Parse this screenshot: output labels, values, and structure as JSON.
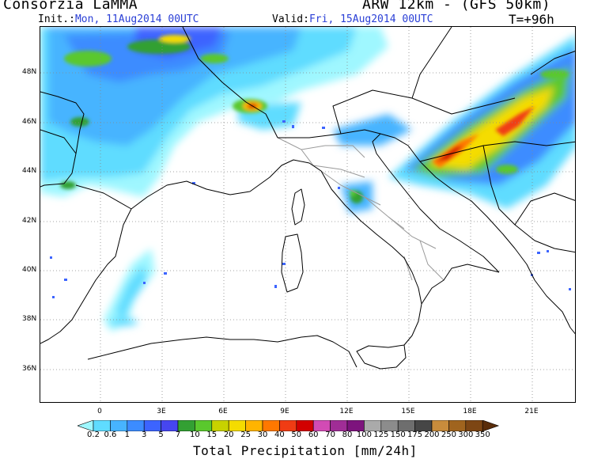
{
  "header": {
    "title_left": "Consorzia LaMMA",
    "title_right": "ARW 12km - (GFS 50km)",
    "init_label": "Init.:",
    "init_value": "Mon, 11Aug2014 00UTC",
    "valid_label": "Valid:",
    "valid_value": "Fri, 15Aug2014 00UTC",
    "lead_time": "T=+96h"
  },
  "map": {
    "lat_labels": [
      "48N",
      "46N",
      "44N",
      "42N",
      "40N",
      "38N",
      "36N"
    ],
    "lon_labels": [
      "0",
      "3E",
      "6E",
      "9E",
      "12E",
      "15E",
      "18E",
      "21E"
    ]
  },
  "colorbar": {
    "title": "Total Precipitation [mm/24h]",
    "levels": [
      "0.2",
      "0.6",
      "1",
      "3",
      "5",
      "7",
      "10",
      "15",
      "20",
      "25",
      "30",
      "40",
      "50",
      "60",
      "70",
      "80",
      "100",
      "125",
      "150",
      "175",
      "200",
      "250",
      "300",
      "350"
    ],
    "colors": [
      "#9ff7ff",
      "#5fdcff",
      "#47b4ff",
      "#3c8cff",
      "#3c64ff",
      "#4646f0",
      "#33a033",
      "#5ac82d",
      "#c8d200",
      "#f5dc00",
      "#ffb400",
      "#ff7800",
      "#f03c14",
      "#d20000",
      "#d24bb4",
      "#a02d96",
      "#7d147d",
      "#aaaaaa",
      "#8c8c8c",
      "#6e6e6e",
      "#464646",
      "#c88c3c",
      "#a0641e",
      "#7d4614",
      "#5a2d0a"
    ]
  }
}
